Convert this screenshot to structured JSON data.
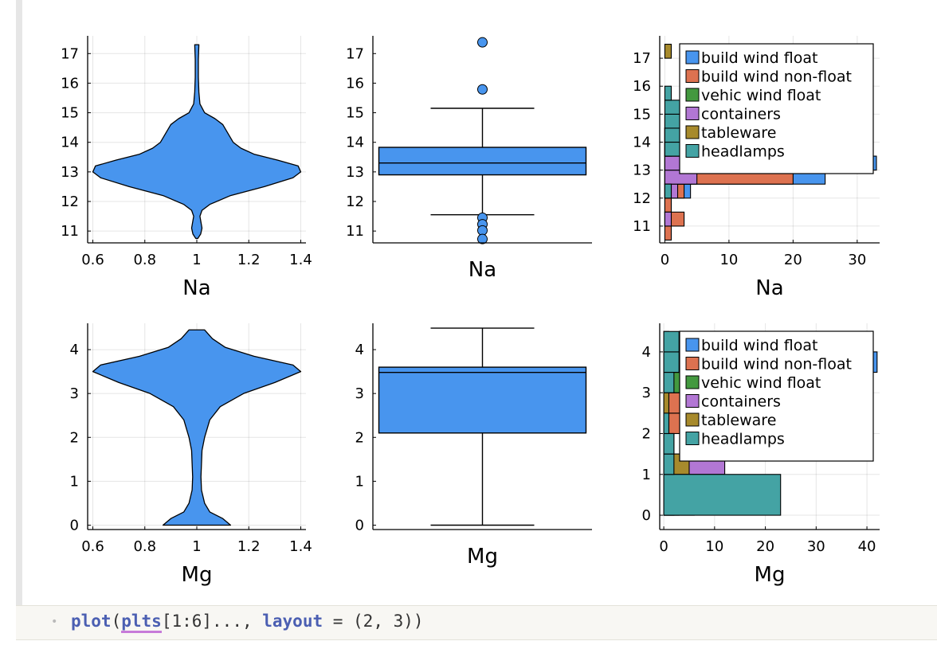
{
  "code": {
    "fn": "plot",
    "open": "(",
    "var": "plts",
    "rest": "[1:6]..., ",
    "kw": "layout",
    "tail": " = (2, 3))"
  },
  "chart_data": [
    {
      "type": "violin",
      "xlabel": "Na",
      "xlim": [
        0.58,
        1.42
      ],
      "xticks": [
        0.6,
        0.8,
        1.0,
        1.2,
        1.4
      ],
      "ylim": [
        10.6,
        17.6
      ],
      "yticks": [
        11,
        12,
        13,
        14,
        15,
        16,
        17
      ],
      "grid": true,
      "color": "#4895ee",
      "center": 1.0,
      "profile": [
        [
          10.75,
          0.004
        ],
        [
          10.9,
          0.015
        ],
        [
          11.1,
          0.02
        ],
        [
          11.3,
          0.016
        ],
        [
          11.5,
          0.012
        ],
        [
          11.7,
          0.02
        ],
        [
          11.9,
          0.05
        ],
        [
          12.2,
          0.13
        ],
        [
          12.5,
          0.26
        ],
        [
          12.8,
          0.37
        ],
        [
          13.0,
          0.4
        ],
        [
          13.2,
          0.39
        ],
        [
          13.4,
          0.31
        ],
        [
          13.6,
          0.22
        ],
        [
          13.8,
          0.17
        ],
        [
          14.0,
          0.14
        ],
        [
          14.3,
          0.12
        ],
        [
          14.6,
          0.1
        ],
        [
          14.8,
          0.07
        ],
        [
          15.0,
          0.03
        ],
        [
          15.3,
          0.012
        ],
        [
          15.7,
          0.008
        ],
        [
          16.2,
          0.006
        ],
        [
          16.8,
          0.006
        ],
        [
          17.3,
          0.008
        ]
      ]
    },
    {
      "type": "box",
      "xlabel": "Na",
      "ylim": [
        10.6,
        17.6
      ],
      "yticks": [
        11,
        12,
        13,
        14,
        15,
        16,
        17
      ],
      "color": "#4895ee",
      "whisker_low": 11.55,
      "q1": 12.9,
      "median": 13.3,
      "q3": 13.83,
      "whisker_high": 15.15,
      "outliers": [
        17.38,
        15.79,
        11.45,
        11.23,
        11.02,
        10.73
      ]
    },
    {
      "type": "histogram",
      "orientation": "horizontal",
      "xlabel": "Na",
      "xlim": [
        -0.8,
        33.5
      ],
      "xticks": [
        0,
        10,
        20,
        30
      ],
      "ylim": [
        10.4,
        17.8
      ],
      "yticks": [
        11,
        12,
        13,
        14,
        15,
        16,
        17
      ],
      "legend_position": "top-right",
      "series": [
        {
          "name": "build wind float",
          "color": "#4895ee",
          "bins": [
            [
              11.0,
              11.5,
              1
            ],
            [
              11.5,
              12.0,
              1
            ],
            [
              12.0,
              12.5,
              4
            ],
            [
              12.5,
              13.0,
              25
            ],
            [
              13.0,
              13.5,
              33
            ],
            [
              13.5,
              14.0,
              6
            ],
            [
              14.0,
              14.5,
              1
            ]
          ]
        },
        {
          "name": "build wind non-float",
          "color": "#dd7250",
          "bins": [
            [
              10.5,
              11.0,
              1
            ],
            [
              11.0,
              11.5,
              3
            ],
            [
              11.5,
              12.0,
              1
            ],
            [
              12.0,
              12.5,
              3
            ],
            [
              12.5,
              13.0,
              20
            ],
            [
              13.0,
              13.5,
              25
            ],
            [
              13.5,
              14.0,
              10
            ],
            [
              14.0,
              14.5,
              2
            ]
          ]
        },
        {
          "name": "vehic wind float",
          "color": "#43993f",
          "bins": [
            [
              12.5,
              13.0,
              3
            ],
            [
              13.0,
              13.5,
              6
            ],
            [
              13.5,
              14.0,
              5
            ],
            [
              14.0,
              14.5,
              2
            ]
          ]
        },
        {
          "name": "containers",
          "color": "#b277d4",
          "bins": [
            [
              11.0,
              11.5,
              1
            ],
            [
              12.0,
              12.5,
              2
            ],
            [
              12.5,
              13.0,
              5
            ],
            [
              13.0,
              13.5,
              3
            ],
            [
              13.5,
              14.0,
              1
            ]
          ]
        },
        {
          "name": "tableware",
          "color": "#a78a2c",
          "bins": [
            [
              12.0,
              12.5,
              1
            ],
            [
              13.5,
              14.0,
              3
            ],
            [
              14.0,
              14.5,
              2
            ],
            [
              14.5,
              15.0,
              1
            ],
            [
              17.0,
              17.5,
              1
            ]
          ]
        },
        {
          "name": "headlamps",
          "color": "#44a3a4",
          "bins": [
            [
              12.0,
              12.5,
              1
            ],
            [
              13.5,
              14.0,
              6
            ],
            [
              14.0,
              14.5,
              8
            ],
            [
              14.5,
              15.0,
              4
            ],
            [
              15.0,
              15.5,
              3
            ],
            [
              15.5,
              16.0,
              1
            ]
          ]
        }
      ]
    },
    {
      "type": "violin",
      "xlabel": "Mg",
      "xlim": [
        0.58,
        1.42
      ],
      "xticks": [
        0.6,
        0.8,
        1.0,
        1.2,
        1.4
      ],
      "ylim": [
        -0.1,
        4.6
      ],
      "yticks": [
        0,
        1,
        2,
        3,
        4
      ],
      "grid": true,
      "color": "#4895ee",
      "center": 1.0,
      "profile": [
        [
          0.0,
          0.13
        ],
        [
          0.15,
          0.1
        ],
        [
          0.3,
          0.05
        ],
        [
          0.5,
          0.03
        ],
        [
          0.8,
          0.018
        ],
        [
          1.1,
          0.016
        ],
        [
          1.4,
          0.018
        ],
        [
          1.7,
          0.02
        ],
        [
          2.0,
          0.03
        ],
        [
          2.4,
          0.05
        ],
        [
          2.7,
          0.09
        ],
        [
          3.0,
          0.18
        ],
        [
          3.25,
          0.3
        ],
        [
          3.5,
          0.4
        ],
        [
          3.65,
          0.37
        ],
        [
          3.85,
          0.22
        ],
        [
          4.05,
          0.11
        ],
        [
          4.25,
          0.06
        ],
        [
          4.45,
          0.03
        ]
      ]
    },
    {
      "type": "box",
      "xlabel": "Mg",
      "ylim": [
        -0.1,
        4.6
      ],
      "yticks": [
        0,
        1,
        2,
        3,
        4
      ],
      "color": "#4895ee",
      "whisker_low": 0.0,
      "q1": 2.1,
      "median": 3.48,
      "q3": 3.6,
      "whisker_high": 4.49,
      "outliers": []
    },
    {
      "type": "histogram",
      "orientation": "horizontal",
      "xlabel": "Mg",
      "xlim": [
        -0.8,
        42.5
      ],
      "xticks": [
        0,
        10,
        20,
        30,
        40
      ],
      "ylim": [
        -0.35,
        4.7
      ],
      "yticks": [
        0,
        1,
        2,
        3,
        4
      ],
      "legend_position": "top-right",
      "series": [
        {
          "name": "build wind float",
          "color": "#4895ee",
          "bins": [
            [
              3.0,
              3.5,
              10
            ],
            [
              3.5,
              4.0,
              42
            ],
            [
              4.0,
              4.5,
              1
            ]
          ]
        },
        {
          "name": "build wind non-float",
          "color": "#dd7250",
          "bins": [
            [
              0.0,
              0.5,
              6
            ],
            [
              0.5,
              1.0,
              2
            ],
            [
              2.0,
              2.5,
              4
            ],
            [
              2.5,
              3.0,
              8
            ],
            [
              3.0,
              3.5,
              18
            ],
            [
              3.5,
              4.0,
              38
            ]
          ]
        },
        {
          "name": "vehic wind float",
          "color": "#43993f",
          "bins": [
            [
              3.0,
              3.5,
              4
            ],
            [
              3.5,
              4.0,
              13
            ]
          ]
        },
        {
          "name": "containers",
          "color": "#b277d4",
          "bins": [
            [
              0.0,
              0.5,
              2
            ],
            [
              1.0,
              1.5,
              12
            ],
            [
              1.5,
              2.0,
              2
            ],
            [
              2.0,
              2.5,
              1
            ]
          ]
        },
        {
          "name": "tableware",
          "color": "#a78a2c",
          "bins": [
            [
              0.0,
              0.5,
              3
            ],
            [
              1.0,
              1.5,
              5
            ],
            [
              2.0,
              3.0,
              1
            ]
          ]
        },
        {
          "name": "headlamps",
          "color": "#44a3a4",
          "bins": [
            [
              0.0,
              1.0,
              23
            ],
            [
              1.0,
              1.5,
              2
            ],
            [
              1.5,
              2.0,
              2
            ],
            [
              2.0,
              2.5,
              1
            ],
            [
              3.0,
              3.5,
              2
            ],
            [
              3.5,
              4.0,
              3
            ],
            [
              4.0,
              4.5,
              3
            ]
          ]
        }
      ]
    }
  ]
}
